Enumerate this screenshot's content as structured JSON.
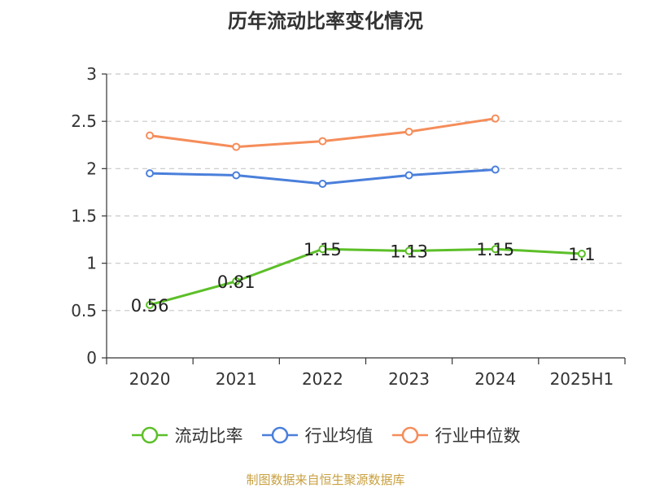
{
  "chart_data": {
    "type": "line",
    "title": "历年流动比率变化情况",
    "categories": [
      "2020",
      "2021",
      "2022",
      "2023",
      "2024",
      "2025H1"
    ],
    "ylim": [
      0,
      3
    ],
    "yticks": [
      "0",
      "0.5",
      "1",
      "1.5",
      "2",
      "2.5",
      "3"
    ],
    "grid": true,
    "legend_position": "bottom",
    "series": [
      {
        "name": "流动比率",
        "color": "#5cbf28",
        "values": [
          0.56,
          0.81,
          1.15,
          1.13,
          1.15,
          1.1
        ],
        "labels": [
          "0.56",
          "0.81",
          "1.15",
          "1.13",
          "1.15",
          "1.1"
        ]
      },
      {
        "name": "行业均值",
        "color": "#4a7fdb",
        "values": [
          1.95,
          1.93,
          1.84,
          1.93,
          1.99,
          null
        ]
      },
      {
        "name": "行业中位数",
        "color": "#f58d5a",
        "values": [
          2.35,
          2.23,
          2.29,
          2.39,
          2.53,
          null
        ]
      }
    ]
  },
  "source": "制图数据来自恒生聚源数据库"
}
